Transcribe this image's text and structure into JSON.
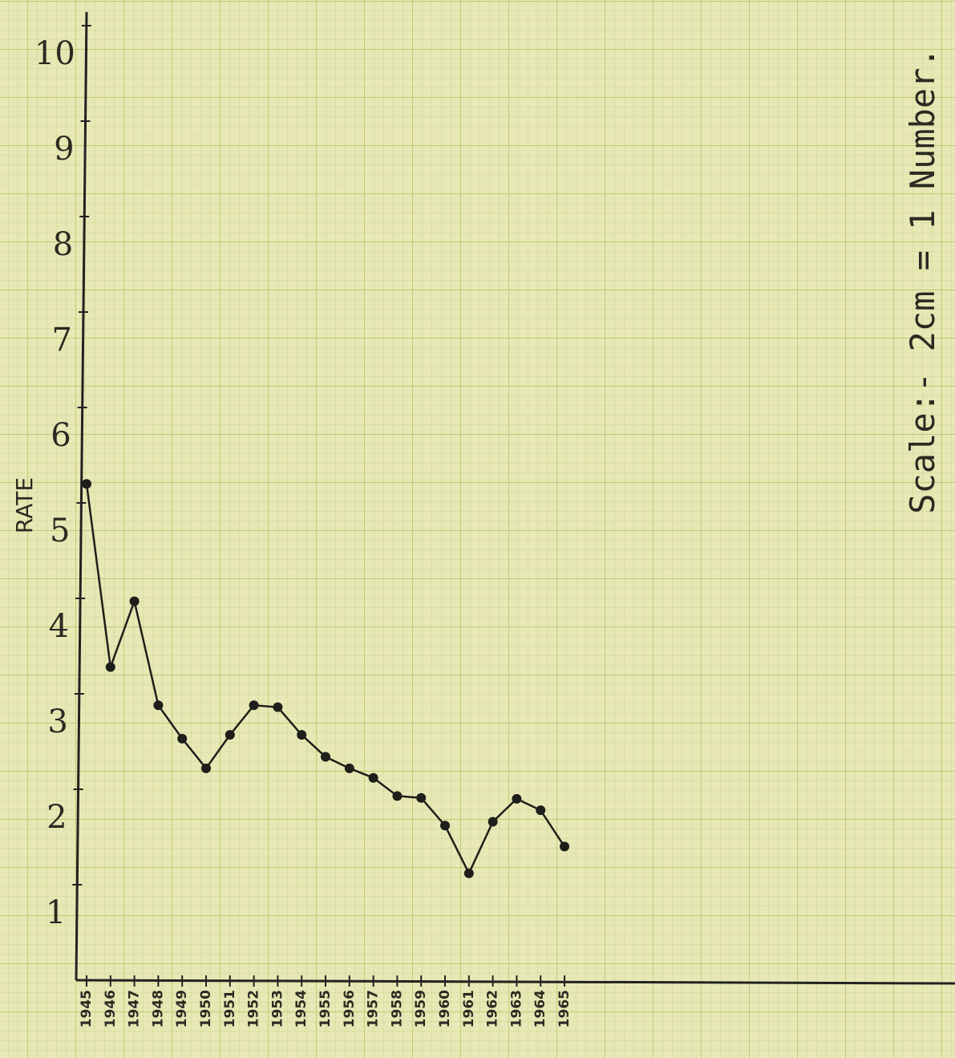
{
  "chart_data": {
    "type": "line",
    "y_label": "RATE",
    "annotation": "Scale:- 2cm = 1 Number.",
    "categories": [
      "1945",
      "1946",
      "1947",
      "1948",
      "1949",
      "1950",
      "1951",
      "1952",
      "1953",
      "1954",
      "1955",
      "1956",
      "1957",
      "1958",
      "1959",
      "1960",
      "1961",
      "1962",
      "1963",
      "1964",
      "1965"
    ],
    "series": [
      {
        "name": "Rate",
        "color": "#1e1e1a",
        "values": [
          5.2,
          3.28,
          3.97,
          2.88,
          2.53,
          2.22,
          2.57,
          2.88,
          2.86,
          2.57,
          2.34,
          2.22,
          2.12,
          1.93,
          1.91,
          1.62,
          1.12,
          1.66,
          1.9,
          1.78,
          1.4
        ]
      }
    ],
    "ylim": [
      0,
      10
    ],
    "yticks": [
      1,
      2,
      3,
      4,
      5,
      6,
      7,
      8,
      9,
      10
    ],
    "grid": true
  }
}
